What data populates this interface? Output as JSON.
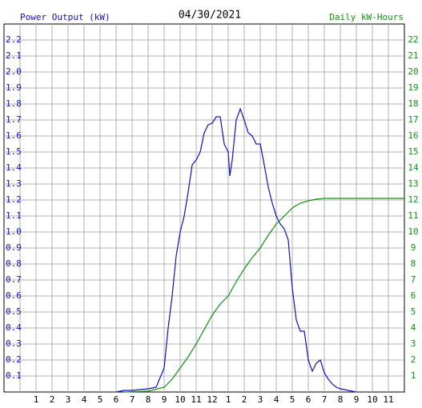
{
  "chart_data": {
    "type": "line",
    "title": "04/30/2021",
    "y_label": "Power Output (kW)",
    "y2_label": "Daily kW-Hours",
    "xlim": [
      0,
      24
    ],
    "xticks": [
      1,
      2,
      3,
      4,
      5,
      6,
      7,
      8,
      9,
      10,
      11,
      12,
      {
        "value": 13,
        "label": "1"
      },
      {
        "value": 14,
        "label": "2"
      },
      {
        "value": 15,
        "label": "3"
      },
      {
        "value": 16,
        "label": "4"
      },
      {
        "value": 17,
        "label": "5"
      },
      {
        "value": 18,
        "label": "6"
      },
      {
        "value": 19,
        "label": "7"
      },
      {
        "value": 20,
        "label": "8"
      },
      {
        "value": 21,
        "label": "9"
      },
      {
        "value": 22,
        "label": "10"
      },
      {
        "value": 23,
        "label": "11"
      }
    ],
    "ylim": [
      0,
      2.3
    ],
    "yticks": [
      0.1,
      0.2,
      0.3,
      0.4,
      0.5,
      0.6,
      0.7,
      0.8,
      0.9,
      {
        "value": 1,
        "label": "1.0"
      },
      1.1,
      1.2,
      1.3,
      1.4,
      1.5,
      1.6,
      1.7,
      1.8,
      1.9,
      {
        "value": 2,
        "label": "2.0"
      },
      2.1,
      2.2
    ],
    "y2lim": [
      0,
      23
    ],
    "y2ticks": [
      1,
      2,
      3,
      4,
      5,
      6,
      7,
      8,
      9,
      10,
      11,
      12,
      13,
      14,
      15,
      16,
      17,
      18,
      19,
      20,
      21,
      22
    ],
    "grid": true,
    "series": [
      {
        "name": "Power Output (kW)",
        "color": "#1010c0",
        "x": [
          6,
          6.5,
          7,
          8,
          8.5,
          9,
          9.25,
          9.5,
          9.75,
          10,
          10.25,
          10.5,
          10.75,
          11,
          11.25,
          11.5,
          11.75,
          12,
          12.25,
          12.5,
          12.75,
          13,
          13.1,
          13.25,
          13.5,
          13.75,
          14,
          14.25,
          14.5,
          14.75,
          15,
          15.25,
          15.5,
          15.75,
          16,
          16.25,
          16.5,
          16.75,
          17,
          17.25,
          17.5,
          17.75,
          18,
          18.25,
          18.5,
          18.75,
          19,
          19.25,
          19.5,
          19.75,
          20,
          20.5,
          21
        ],
        "values": [
          0,
          0.01,
          0.01,
          0.02,
          0.03,
          0.15,
          0.4,
          0.6,
          0.85,
          1.0,
          1.1,
          1.25,
          1.42,
          1.45,
          1.5,
          1.62,
          1.67,
          1.68,
          1.72,
          1.72,
          1.55,
          1.5,
          1.35,
          1.45,
          1.7,
          1.77,
          1.7,
          1.62,
          1.6,
          1.55,
          1.55,
          1.42,
          1.28,
          1.18,
          1.1,
          1.05,
          1.02,
          0.95,
          0.65,
          0.45,
          0.38,
          0.38,
          0.2,
          0.13,
          0.18,
          0.2,
          0.12,
          0.08,
          0.05,
          0.03,
          0.02,
          0.01,
          0
        ]
      },
      {
        "name": "Daily kW-Hours",
        "color": "#109010",
        "axis": "y2",
        "x": [
          6.5,
          8,
          9,
          9.5,
          10,
          10.5,
          11,
          11.5,
          12,
          12.5,
          13,
          13.5,
          14,
          14.5,
          15,
          15.5,
          16,
          16.5,
          17,
          17.5,
          18,
          18.5,
          19,
          20,
          24
        ],
        "values": [
          0,
          0.05,
          0.3,
          0.8,
          1.5,
          2.2,
          3,
          3.9,
          4.8,
          5.5,
          6,
          6.9,
          7.7,
          8.4,
          9,
          9.8,
          10.5,
          11,
          11.5,
          11.8,
          11.95,
          12.05,
          12.1,
          12.1,
          12.1
        ]
      }
    ]
  }
}
